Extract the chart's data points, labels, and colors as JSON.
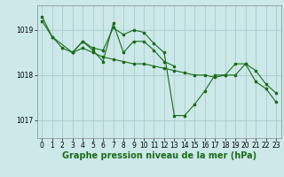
{
  "background_color": "#cce8e8",
  "grid_color": "#aacccc",
  "line_color": "#1a6b1a",
  "xlabel": "Graphe pression niveau de la mer (hPa)",
  "xlabel_fontsize": 7,
  "tick_fontsize": 5.5,
  "ylabel_ticks": [
    1017,
    1018,
    1019
  ],
  "xlim": [
    -0.5,
    23.5
  ],
  "ylim": [
    1016.6,
    1019.55
  ],
  "series": [
    {
      "x": [
        0,
        1,
        3,
        4,
        5,
        6,
        7,
        8,
        9,
        10,
        11,
        12,
        13,
        14,
        15,
        16,
        17,
        18,
        19,
        20,
        21,
        22,
        23
      ],
      "y": [
        1019.2,
        1018.85,
        1018.5,
        1018.6,
        1018.5,
        1018.4,
        1018.35,
        1018.3,
        1018.25,
        1018.25,
        1018.2,
        1018.15,
        1018.1,
        1018.05,
        1018.0,
        1018.0,
        1017.95,
        1018.0,
        1018.25,
        1018.25,
        1018.1,
        1017.8,
        1017.6
      ]
    },
    {
      "x": [
        0,
        1,
        2,
        3,
        4,
        5,
        6,
        7,
        8,
        9,
        10,
        11,
        12,
        13,
        14,
        15,
        16,
        17,
        18,
        19,
        20,
        21,
        22,
        23
      ],
      "y": [
        1019.3,
        1018.85,
        1018.6,
        1018.5,
        1018.75,
        1018.6,
        1018.55,
        1019.05,
        1018.9,
        1019.0,
        1018.95,
        1018.7,
        1018.5,
        1017.1,
        1017.1,
        1017.35,
        1017.65,
        1018.0,
        1018.0,
        1018.0,
        1018.25,
        1017.85,
        1017.7,
        1017.4
      ]
    },
    {
      "x": [
        3,
        4,
        5,
        6,
        7,
        8,
        9,
        10,
        11,
        12,
        13
      ],
      "y": [
        1018.5,
        1018.75,
        1018.55,
        1018.3,
        1019.15,
        1018.5,
        1018.75,
        1018.75,
        1018.55,
        1018.3,
        1018.2
      ]
    }
  ]
}
